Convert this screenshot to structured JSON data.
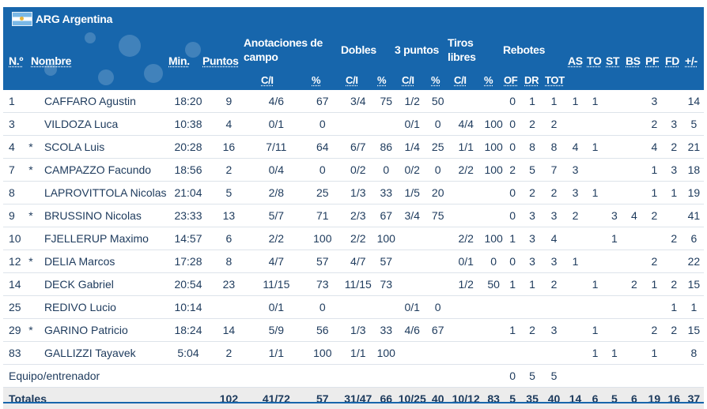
{
  "team": {
    "code_name": "ARG Argentina"
  },
  "header": {
    "no": "N.º",
    "name": "Nombre",
    "min": "Min.",
    "pts": "Puntos",
    "fg_l1": "Anotaciones de",
    "fg_l2": "campo",
    "dobles": "Dobles",
    "tres": "3 puntos",
    "ft_l1": "Tiros",
    "ft_l2": "libres",
    "reb": "Rebotes",
    "as": "AS",
    "to": "TO",
    "st": "ST",
    "bs": "BS",
    "pf": "PF",
    "fd": "FD",
    "pm": "+/-",
    "ci": "C/I",
    "pct": "%",
    "of": "OF",
    "dr": "DR",
    "tot": "TOT"
  },
  "columns": [
    "no",
    "starter",
    "name",
    "min",
    "pts",
    "fg",
    "fgp",
    "d",
    "dp",
    "t",
    "tp",
    "ft",
    "ftp",
    "of",
    "dr",
    "tot",
    "as",
    "to",
    "st",
    "bs",
    "pf",
    "fd",
    "pm"
  ],
  "players": [
    {
      "no": "1",
      "starter": "",
      "name": "CAFFARO Agustin",
      "min": "18:20",
      "pts": "9",
      "fg": "4/6",
      "fgp": "67",
      "d": "3/4",
      "dp": "75",
      "t": "1/2",
      "tp": "50",
      "ft": "",
      "ftp": "",
      "of": "0",
      "dr": "1",
      "tot": "1",
      "as": "1",
      "to": "1",
      "st": "",
      "bs": "",
      "pf": "3",
      "fd": "",
      "pm": "14"
    },
    {
      "no": "3",
      "starter": "",
      "name": "VILDOZA Luca",
      "min": "10:38",
      "pts": "4",
      "fg": "0/1",
      "fgp": "0",
      "d": "",
      "dp": "",
      "t": "0/1",
      "tp": "0",
      "ft": "4/4",
      "ftp": "100",
      "of": "0",
      "dr": "2",
      "tot": "2",
      "as": "",
      "to": "",
      "st": "",
      "bs": "",
      "pf": "2",
      "fd": "3",
      "pm": "5"
    },
    {
      "no": "4",
      "starter": "*",
      "name": "SCOLA Luis",
      "min": "20:28",
      "pts": "16",
      "fg": "7/11",
      "fgp": "64",
      "d": "6/7",
      "dp": "86",
      "t": "1/4",
      "tp": "25",
      "ft": "1/1",
      "ftp": "100",
      "of": "0",
      "dr": "8",
      "tot": "8",
      "as": "4",
      "to": "1",
      "st": "",
      "bs": "",
      "pf": "4",
      "fd": "2",
      "pm": "21"
    },
    {
      "no": "7",
      "starter": "*",
      "name": "CAMPAZZO Facundo",
      "min": "18:56",
      "pts": "2",
      "fg": "0/4",
      "fgp": "0",
      "d": "0/2",
      "dp": "0",
      "t": "0/2",
      "tp": "0",
      "ft": "2/2",
      "ftp": "100",
      "of": "2",
      "dr": "5",
      "tot": "7",
      "as": "3",
      "to": "",
      "st": "",
      "bs": "",
      "pf": "1",
      "fd": "3",
      "pm": "18"
    },
    {
      "no": "8",
      "starter": "",
      "name": "LAPROVITTOLA Nicolas",
      "min": "21:04",
      "pts": "5",
      "fg": "2/8",
      "fgp": "25",
      "d": "1/3",
      "dp": "33",
      "t": "1/5",
      "tp": "20",
      "ft": "",
      "ftp": "",
      "of": "0",
      "dr": "2",
      "tot": "2",
      "as": "3",
      "to": "1",
      "st": "",
      "bs": "",
      "pf": "1",
      "fd": "1",
      "pm": "19"
    },
    {
      "no": "9",
      "starter": "*",
      "name": "BRUSSINO Nicolas",
      "min": "23:33",
      "pts": "13",
      "fg": "5/7",
      "fgp": "71",
      "d": "2/3",
      "dp": "67",
      "t": "3/4",
      "tp": "75",
      "ft": "",
      "ftp": "",
      "of": "0",
      "dr": "3",
      "tot": "3",
      "as": "2",
      "to": "",
      "st": "3",
      "bs": "4",
      "pf": "2",
      "fd": "",
      "pm": "41"
    },
    {
      "no": "10",
      "starter": "",
      "name": "FJELLERUP Maximo",
      "min": "14:57",
      "pts": "6",
      "fg": "2/2",
      "fgp": "100",
      "d": "2/2",
      "dp": "100",
      "t": "",
      "tp": "",
      "ft": "2/2",
      "ftp": "100",
      "of": "1",
      "dr": "3",
      "tot": "4",
      "as": "",
      "to": "",
      "st": "1",
      "bs": "",
      "pf": "",
      "fd": "2",
      "pm": "6"
    },
    {
      "no": "12",
      "starter": "*",
      "name": "DELIA Marcos",
      "min": "17:28",
      "pts": "8",
      "fg": "4/7",
      "fgp": "57",
      "d": "4/7",
      "dp": "57",
      "t": "",
      "tp": "",
      "ft": "0/1",
      "ftp": "0",
      "of": "0",
      "dr": "3",
      "tot": "3",
      "as": "1",
      "to": "",
      "st": "",
      "bs": "",
      "pf": "2",
      "fd": "",
      "pm": "22"
    },
    {
      "no": "14",
      "starter": "",
      "name": "DECK Gabriel",
      "min": "20:54",
      "pts": "23",
      "fg": "11/15",
      "fgp": "73",
      "d": "11/15",
      "dp": "73",
      "t": "",
      "tp": "",
      "ft": "1/2",
      "ftp": "50",
      "of": "1",
      "dr": "1",
      "tot": "2",
      "as": "",
      "to": "1",
      "st": "",
      "bs": "2",
      "pf": "1",
      "fd": "2",
      "pm": "15"
    },
    {
      "no": "25",
      "starter": "",
      "name": "REDIVO Lucio",
      "min": "10:14",
      "pts": "",
      "fg": "0/1",
      "fgp": "0",
      "d": "",
      "dp": "",
      "t": "0/1",
      "tp": "0",
      "ft": "",
      "ftp": "",
      "of": "",
      "dr": "",
      "tot": "",
      "as": "",
      "to": "",
      "st": "",
      "bs": "",
      "pf": "",
      "fd": "1",
      "pm": "1"
    },
    {
      "no": "29",
      "starter": "*",
      "name": "GARINO Patricio",
      "min": "18:24",
      "pts": "14",
      "fg": "5/9",
      "fgp": "56",
      "d": "1/3",
      "dp": "33",
      "t": "4/6",
      "tp": "67",
      "ft": "",
      "ftp": "",
      "of": "1",
      "dr": "2",
      "tot": "3",
      "as": "",
      "to": "1",
      "st": "",
      "bs": "",
      "pf": "2",
      "fd": "2",
      "pm": "15"
    },
    {
      "no": "83",
      "starter": "",
      "name": "GALLIZZI Tayavek",
      "min": "5:04",
      "pts": "2",
      "fg": "1/1",
      "fgp": "100",
      "d": "1/1",
      "dp": "100",
      "t": "",
      "tp": "",
      "ft": "",
      "ftp": "",
      "of": "",
      "dr": "",
      "tot": "",
      "as": "",
      "to": "1",
      "st": "1",
      "bs": "",
      "pf": "1",
      "fd": "",
      "pm": "8"
    }
  ],
  "team_row": {
    "label": "Equipo/entrenador",
    "of": "0",
    "dr": "5",
    "tot": "5"
  },
  "totals": {
    "label": "Totales",
    "pts": "102",
    "fg": "41/72",
    "fgp": "57",
    "d": "31/47",
    "dp": "66",
    "t": "10/25",
    "tp": "40",
    "ft": "10/12",
    "ftp": "83",
    "of": "5",
    "dr": "35",
    "tot": "40",
    "as": "14",
    "to": "6",
    "st": "5",
    "bs": "6",
    "pf": "19",
    "fd": "16",
    "pm": "37"
  },
  "colors": {
    "header_bg": "#1766ac",
    "text": "#1d3a5c",
    "totals_bg": "#ececec"
  }
}
